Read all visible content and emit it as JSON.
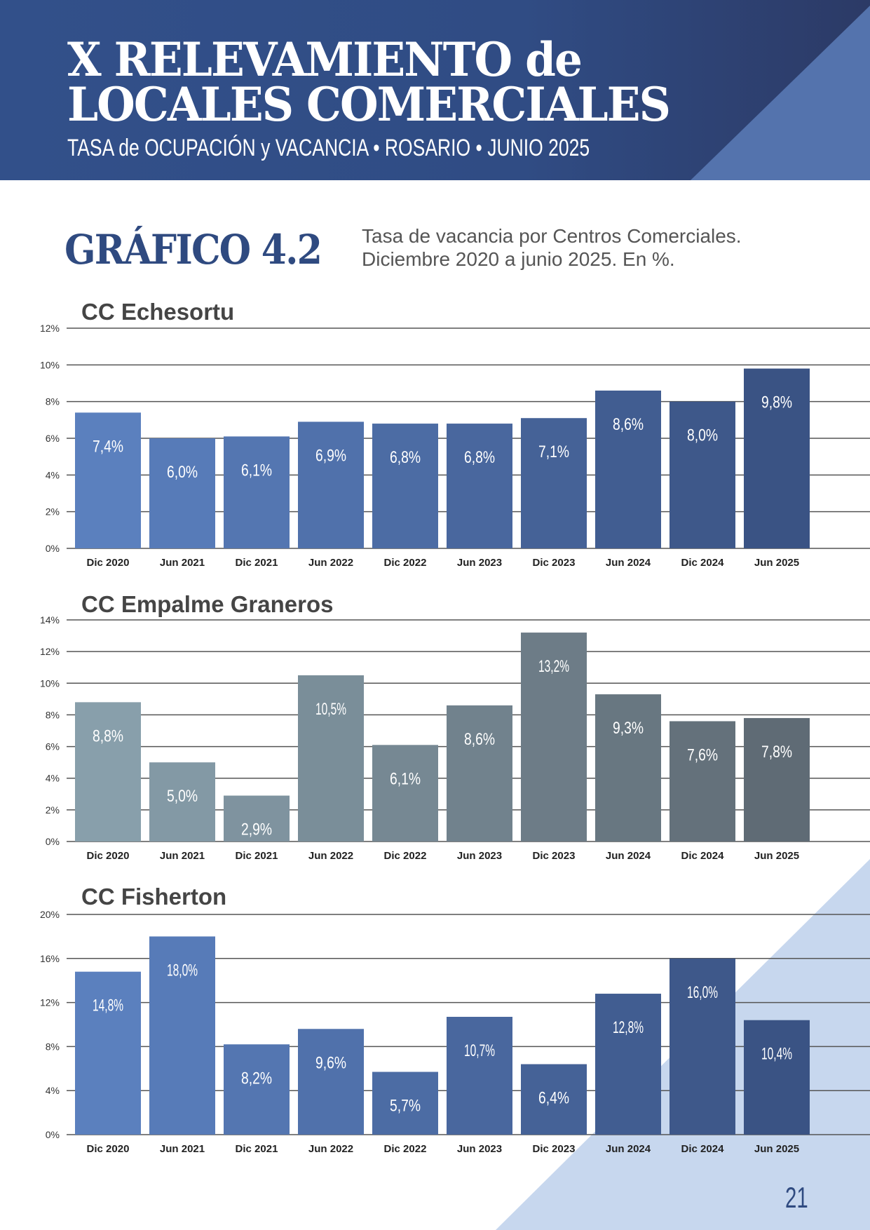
{
  "header": {
    "title_line1": "X RELEVAMIENTO de",
    "title_line2": "LOCALES COMERCIALES",
    "subtitle": "TASA de OCUPACIÓN y VACANCIA  •  ROSARIO  •  JUNIO 2025"
  },
  "figure": {
    "label": "GRÁFICO 4.2",
    "description_line1": "Tasa de vacancia por Centros Comerciales.",
    "description_line2": "Diciembre 2020 a junio 2025. En %."
  },
  "page_number": "21",
  "colors": {
    "header": "#304c84",
    "accent_light": "#c7d7ee",
    "blue_start": "#5b80be",
    "blue_end": "#3a5384",
    "gray_start": "#889fab",
    "gray_end": "#5f6b75"
  },
  "chart_data": [
    {
      "type": "bar",
      "title": "CC Echesortu",
      "categories": [
        "Dic 2020",
        "Jun 2021",
        "Dic 2021",
        "Jun 2022",
        "Dic 2022",
        "Jun 2023",
        "Dic 2023",
        "Jun 2024",
        "Dic 2024",
        "Jun 2025"
      ],
      "values": [
        7.4,
        6.0,
        6.1,
        6.9,
        6.8,
        6.8,
        7.1,
        8.6,
        8.0,
        9.8
      ],
      "data_labels": [
        "7,4%",
        "6,0%",
        "6,1%",
        "6,9%",
        "6,8%",
        "6,8%",
        "7,1%",
        "8,6%",
        "8,0%",
        "9,8%"
      ],
      "yticks": [
        0,
        2,
        4,
        6,
        8,
        10,
        12
      ],
      "ytick_labels": [
        "0%",
        "2%",
        "4%",
        "6%",
        "8%",
        "10%",
        "12%"
      ],
      "ylim": [
        0,
        12
      ],
      "palette": "blue"
    },
    {
      "type": "bar",
      "title": "CC Empalme Graneros",
      "categories": [
        "Dic 2020",
        "Jun 2021",
        "Dic 2021",
        "Jun 2022",
        "Dic 2022",
        "Jun 2023",
        "Dic 2023",
        "Jun 2024",
        "Dic 2024",
        "Jun 2025"
      ],
      "values": [
        8.8,
        5.0,
        2.9,
        10.5,
        6.1,
        8.6,
        13.2,
        9.3,
        7.6,
        7.8
      ],
      "data_labels": [
        "8,8%",
        "5,0%",
        "2,9%",
        "10,5%",
        "6,1%",
        "8,6%",
        "13,2%",
        "9,3%",
        "7,6%",
        "7,8%"
      ],
      "yticks": [
        0,
        2,
        4,
        6,
        8,
        10,
        12,
        14
      ],
      "ytick_labels": [
        "0%",
        "2%",
        "4%",
        "6%",
        "8%",
        "10%",
        "12%",
        "14%"
      ],
      "ylim": [
        0,
        14
      ],
      "palette": "gray"
    },
    {
      "type": "bar",
      "title": "CC Fisherton",
      "categories": [
        "Dic 2020",
        "Jun 2021",
        "Dic 2021",
        "Jun 2022",
        "Dic 2022",
        "Jun 2023",
        "Dic 2023",
        "Jun 2024",
        "Dic 2024",
        "Jun 2025"
      ],
      "values": [
        14.8,
        18.0,
        8.2,
        9.6,
        5.7,
        10.7,
        6.4,
        12.8,
        16.0,
        10.4
      ],
      "data_labels": [
        "14,8%",
        "18,0%",
        "8,2%",
        "9,6%",
        "5,7%",
        "10,7%",
        "6,4%",
        "12,8%",
        "16,0%",
        "10,4%"
      ],
      "yticks": [
        0,
        4,
        8,
        12,
        16,
        20
      ],
      "ytick_labels": [
        "0%",
        "4%",
        "8%",
        "12%",
        "16%",
        "20%"
      ],
      "ylim": [
        0,
        20
      ],
      "palette": "blue"
    }
  ]
}
